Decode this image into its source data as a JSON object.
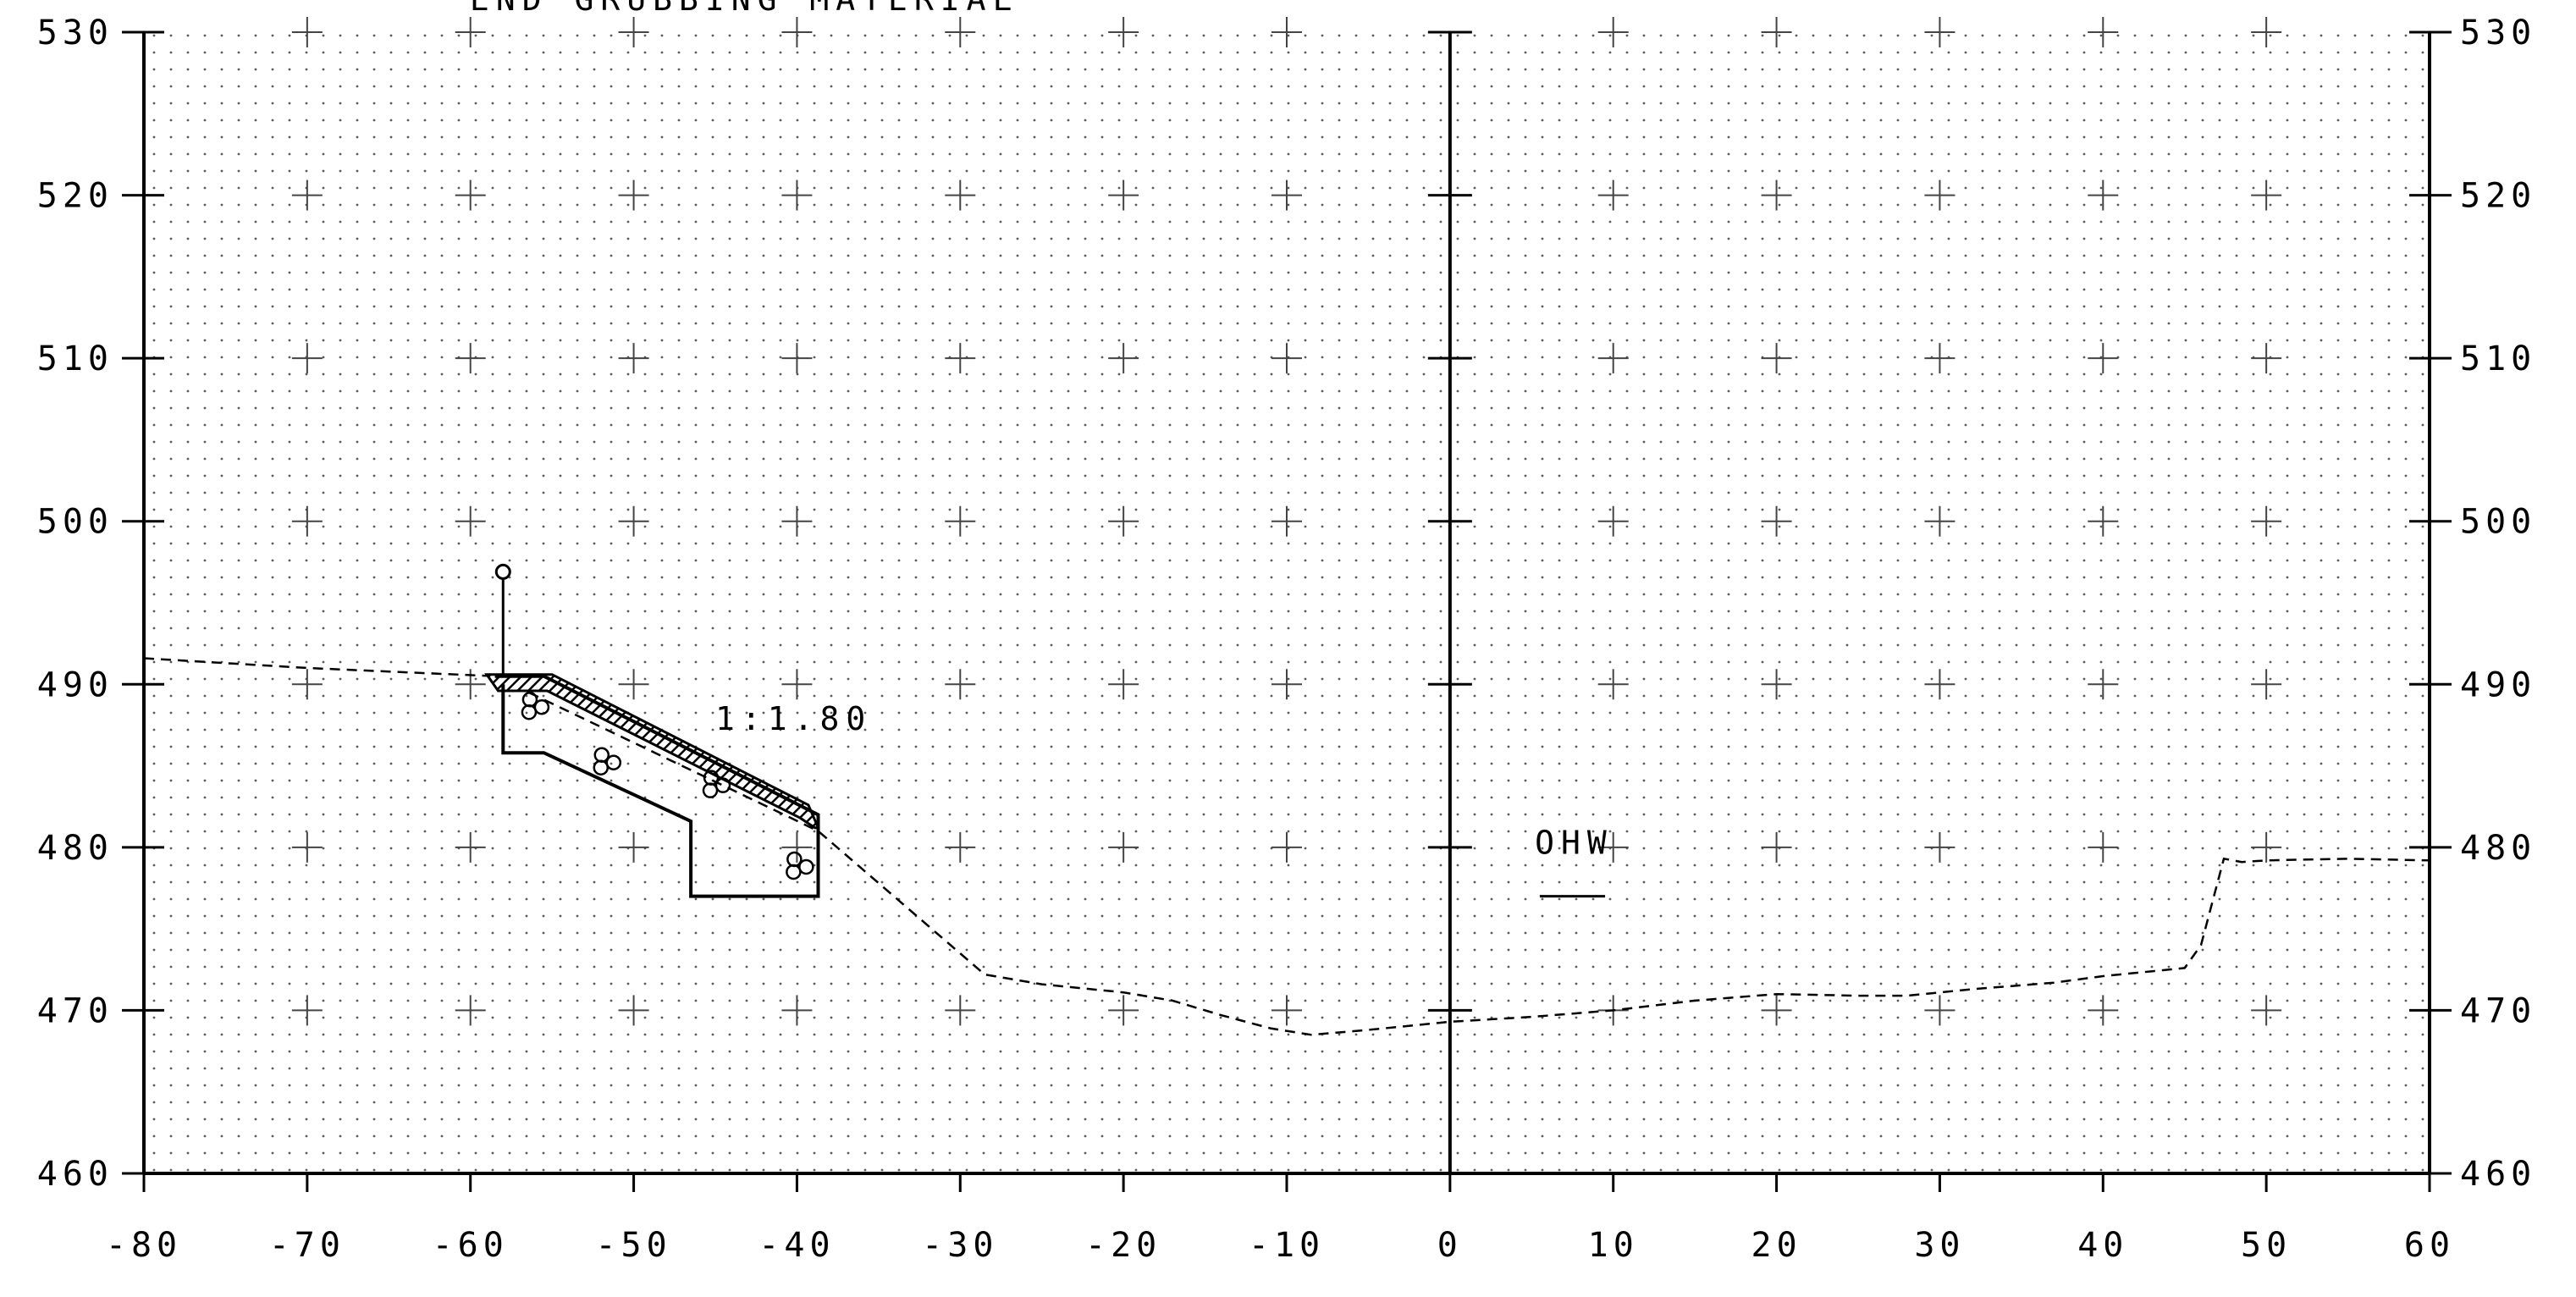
{
  "title_partial": "END GRUBBING MATERIAL",
  "x_axis": {
    "min": -80,
    "max": 60,
    "step": 10,
    "tick_labels": [
      "-80",
      "-70",
      "-60",
      "-50",
      "-40",
      "-30",
      "-20",
      "-10",
      "0",
      "10",
      "20",
      "30",
      "40",
      "50",
      "60"
    ]
  },
  "y_axis": {
    "min": 460,
    "max": 530,
    "step": 10,
    "tick_labels": [
      "460",
      "470",
      "480",
      "490",
      "500",
      "510",
      "520",
      "530"
    ]
  },
  "annotations": {
    "slope": "1:1.80",
    "ohw": "OHW"
  },
  "ground_profile": [
    [
      -80,
      491.6
    ],
    [
      -70,
      491.0
    ],
    [
      -58.5,
      490.5
    ],
    [
      -38.7,
      481.0
    ],
    [
      -28.5,
      472.2
    ],
    [
      -25,
      471.6
    ],
    [
      -20,
      471.1
    ],
    [
      -17,
      470.6
    ],
    [
      -14,
      469.7
    ],
    [
      -11,
      468.9
    ],
    [
      -8.5,
      468.5
    ],
    [
      -5,
      468.8
    ],
    [
      0,
      469.3
    ],
    [
      5,
      469.6
    ],
    [
      10,
      470.0
    ],
    [
      15,
      470.6
    ],
    [
      20,
      471.0
    ],
    [
      25,
      470.9
    ],
    [
      28,
      470.9
    ],
    [
      32,
      471.3
    ],
    [
      37,
      471.7
    ],
    [
      40,
      472.1
    ],
    [
      45,
      472.6
    ],
    [
      46,
      474.0
    ],
    [
      47.4,
      479.3
    ],
    [
      48.5,
      479.1
    ],
    [
      50,
      479.2
    ],
    [
      55,
      479.3
    ],
    [
      60,
      479.2
    ]
  ],
  "section_outline": [
    [
      -58.5,
      490.5
    ],
    [
      -55.5,
      490.5
    ],
    [
      -38.7,
      482.0
    ],
    [
      -38.7,
      477.0
    ],
    [
      -46.5,
      477.0
    ],
    [
      -46.5,
      481.6
    ],
    [
      -55.5,
      485.8
    ],
    [
      -58.0,
      485.8
    ],
    [
      -58.0,
      490.0
    ]
  ],
  "hatched_band": {
    "top": [
      [
        -59.0,
        490.6
      ],
      [
        -55.0,
        490.6
      ],
      [
        -39.3,
        482.6
      ],
      [
        -38.7,
        481.2
      ]
    ],
    "bottom": [
      [
        -38.9,
        481.2
      ],
      [
        -39.8,
        481.8
      ],
      [
        -55.3,
        489.6
      ],
      [
        -58.3,
        489.6
      ]
    ]
  },
  "riprap_clusters": [
    [
      -56.1,
      488.6
    ],
    [
      -51.7,
      485.2
    ],
    [
      -45.0,
      483.8
    ],
    [
      -39.9,
      478.8
    ]
  ],
  "marker_pole": {
    "x": -58.0,
    "y_base": 490.5,
    "y_top": 496.9
  },
  "ohw_line": {
    "x1": 5.5,
    "x2": 9.5,
    "y": 477.0
  }
}
